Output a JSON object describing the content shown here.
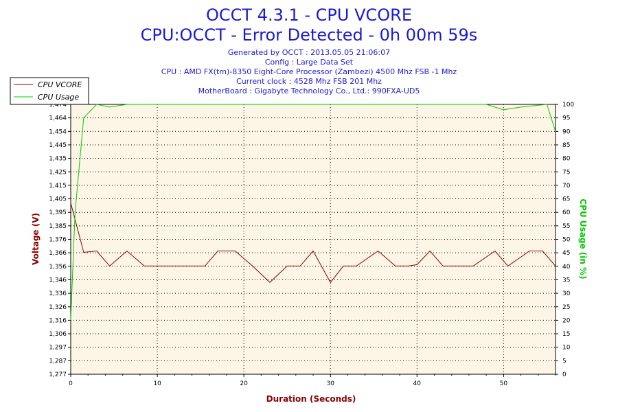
{
  "chart_data": {
    "type": "line",
    "title": "OCCT 4.3.1 - CPU VCORE",
    "title2": "CPU:OCCT - Error Detected - 0h 00m 59s",
    "subtitles": [
      "Generated by OCCT : 2013.05.05 21:06:07",
      "Config : Large Data Set",
      "CPU : AMD FX(tm)-8350 Eight-Core Processor (Zambezi) 4500 Mhz FSB -1 Mhz",
      "Current clock : 4528 Mhz FSB 201 Mhz",
      "MotherBoard : Gigabyte Technology Co., Ltd.: 990FXA-UD5"
    ],
    "xlabel": "Duration (Seconds)",
    "ylabel": "Voltage (V)",
    "y2label": "CPU Usage (in %)",
    "xlim": [
      0,
      56
    ],
    "ylim": [
      1.277,
      1.474
    ],
    "y2lim": [
      0,
      100
    ],
    "xticks": [
      0,
      10,
      20,
      30,
      40,
      50
    ],
    "yticks": [
      "1,277",
      "1,287",
      "1,297",
      "1,306",
      "1,316",
      "1,326",
      "1,336",
      "1,346",
      "1,356",
      "1,366",
      "1,376",
      "1,385",
      "1,395",
      "1,405",
      "1,415",
      "1,425",
      "1,435",
      "1,445",
      "1,454",
      "1,464",
      "1,474"
    ],
    "y2ticks": [
      0,
      5,
      10,
      15,
      20,
      25,
      30,
      35,
      40,
      45,
      50,
      55,
      60,
      65,
      70,
      75,
      80,
      85,
      90,
      95,
      100
    ],
    "grid": true,
    "legend_position": "top-left",
    "colors": {
      "vcore": "#8b0000",
      "usage": "#00cc00",
      "text": "#1a1ad6",
      "plot_bg": "#fdf5e6"
    },
    "series": [
      {
        "name": "CPU VCORE",
        "axis": "left",
        "x": [
          0,
          1.5,
          3,
          4.5,
          6.5,
          8.5,
          15.5,
          17,
          19,
          21,
          23,
          25,
          26.5,
          28,
          30,
          31.5,
          33,
          35.5,
          37.5,
          39,
          40,
          41.5,
          43,
          46.5,
          49,
          50.5,
          53,
          54.5,
          56
        ],
        "values": [
          1.402,
          1.366,
          1.367,
          1.356,
          1.367,
          1.356,
          1.356,
          1.367,
          1.367,
          1.356,
          1.344,
          1.356,
          1.356,
          1.367,
          1.344,
          1.356,
          1.356,
          1.367,
          1.356,
          1.356,
          1.357,
          1.367,
          1.356,
          1.356,
          1.367,
          1.356,
          1.367,
          1.367,
          1.356
        ]
      },
      {
        "name": "CPU Usage",
        "axis": "right",
        "x": [
          0,
          0.5,
          1.5,
          3,
          4.5,
          6.5,
          15.5,
          17,
          20,
          30,
          40,
          48,
          50,
          52,
          55,
          56
        ],
        "values": [
          20,
          60,
          95,
          100,
          99,
          100,
          100,
          100,
          100,
          100,
          100,
          100,
          98,
          99,
          100,
          90
        ]
      }
    ]
  }
}
